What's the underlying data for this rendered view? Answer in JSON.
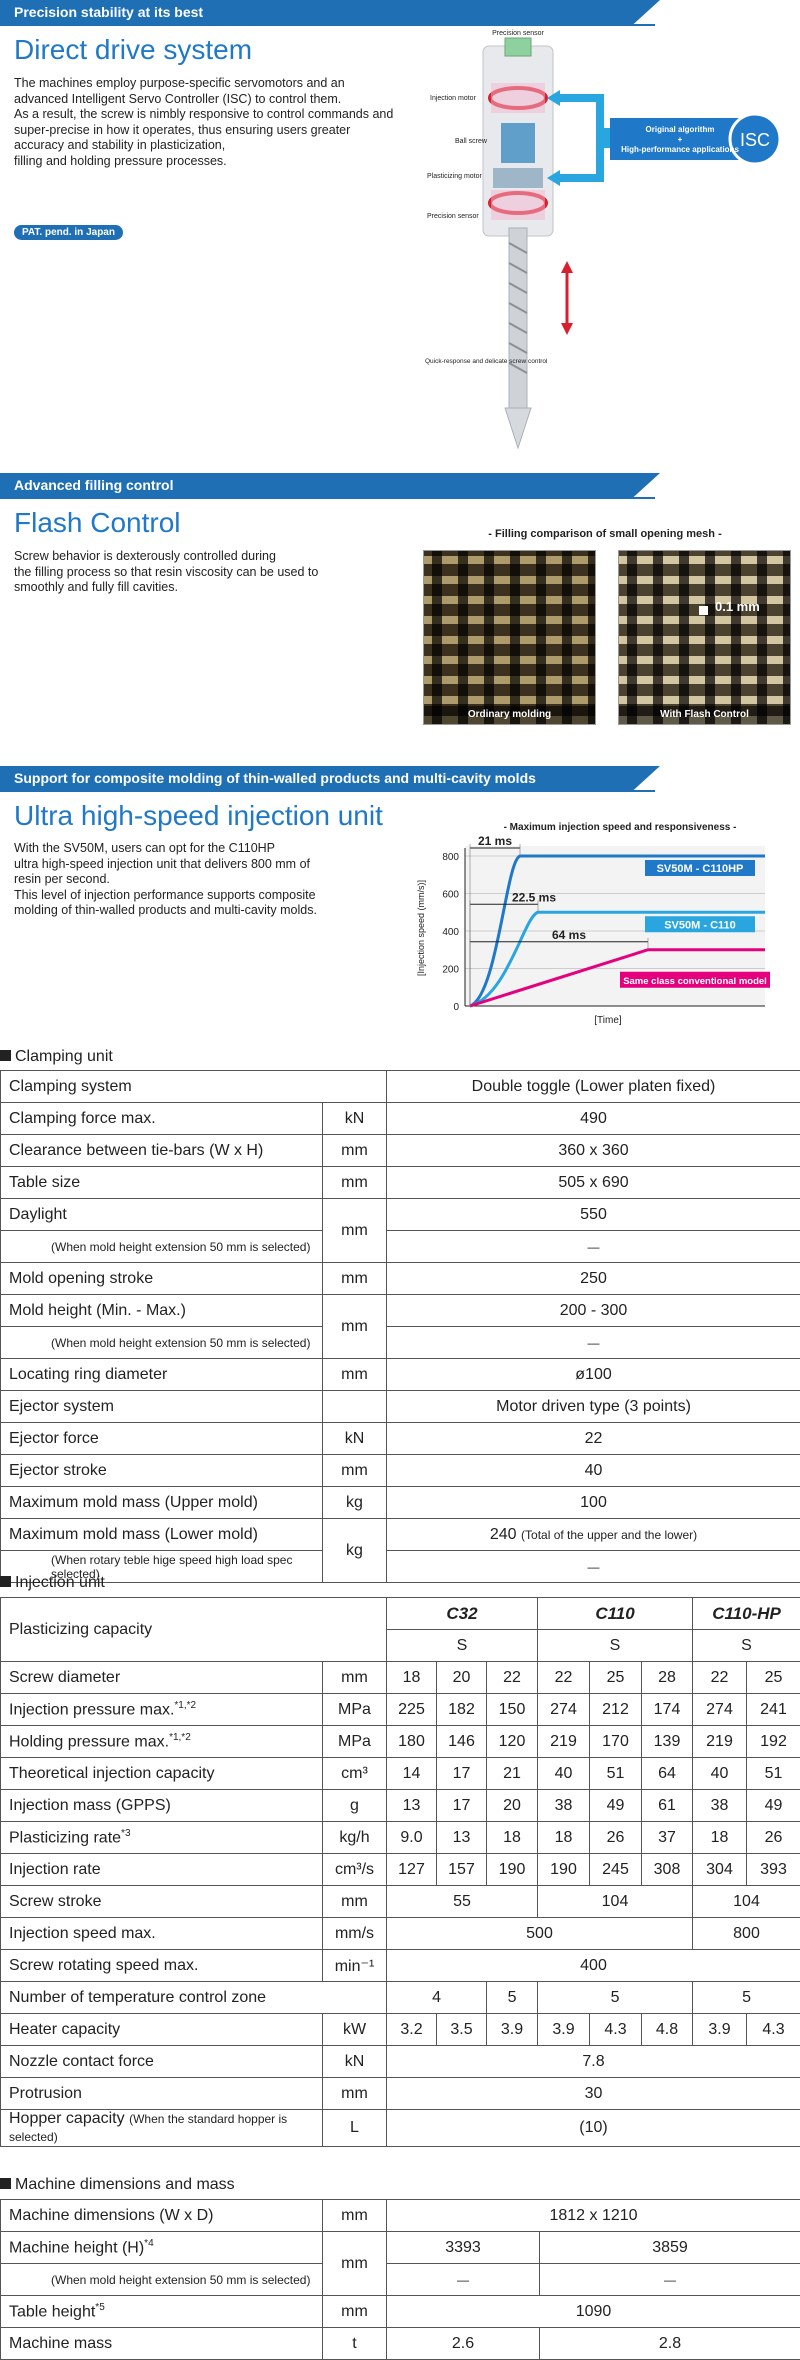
{
  "sections": {
    "direct": {
      "banner": "Precision stability at its best",
      "title": "Direct drive system",
      "paragraph": "The machines employ purpose-specific servomotors and an advanced Intelligent Servo Controller (ISC) to control them.\nAs a result, the screw is nimbly responsive to control commands and super-precise in how it operates, thus ensuring users greater accuracy and stability in plasticization,\nfilling and holding pressure processes.",
      "pat": "PAT. pend. in Japan",
      "diagram": {
        "precision_sensor_top": "Precision sensor",
        "injection_motor": "Injection motor",
        "ball_screw": "Ball screw",
        "plasticizing_motor": "Plasticizing motor",
        "precision_sensor_bottom": "Precision sensor",
        "quick_response": "Quick-response and delicate screw control",
        "algorithm_line1": "Original algorithm",
        "algorithm_plus": "+",
        "algorithm_line2": "High-performance applications",
        "isc": "ISC"
      }
    },
    "flash": {
      "banner": "Advanced filling control",
      "title": "Flash Control",
      "paragraph": "Screw behavior is dexterously controlled during\nthe filling process so that resin viscosity can be used to\nsmoothly and fully fill cavities.",
      "caption": "- Filling comparison of small opening mesh -",
      "photo_left": "Ordinary molding",
      "photo_right": "With Flash Control",
      "dimension": "0.1 mm"
    },
    "ultra": {
      "banner": "Support for composite molding of thin-walled products and multi-cavity molds",
      "title": "Ultra high-speed injection unit",
      "paragraph": "With the SV50M, users can opt for the C110HP\nultra high-speed injection unit that delivers 800 mm of\nresin per second.\nThis level of injection performance supports composite\nmolding of thin-walled products and multi-cavity molds."
    }
  },
  "chart_data": {
    "type": "line",
    "title": "- Maximum injection speed and responsiveness -",
    "ylabel": "[Injection speed (mm/s)]",
    "xlabel": "[Time]",
    "ylim": [
      0,
      800
    ],
    "yticks": [
      "800",
      "600",
      "400",
      "200",
      "0"
    ],
    "series": [
      {
        "name": "SV50M - C110HP",
        "color": "#1f78c8",
        "max": 800,
        "response_label": "21 ms"
      },
      {
        "name": "SV50M - C110",
        "color": "#29a6e0",
        "max": 500,
        "response_label": "22.5 ms"
      },
      {
        "name": "Same class conventional model",
        "color": "#e5007e",
        "max": 300,
        "response_label": "64 ms"
      }
    ]
  },
  "clamping": {
    "title": "Clamping unit",
    "rows": [
      {
        "label": "Clamping system",
        "unit": "",
        "value": "Double toggle (Lower platen fixed)"
      },
      {
        "label": "Clamping force max.",
        "unit": "kN",
        "value": "490"
      },
      {
        "label": "Clearance between tie-bars (W x H)",
        "unit": "mm",
        "value": "360 x 360"
      },
      {
        "label": "Table size",
        "unit": "mm",
        "value": "505 x 690"
      },
      {
        "label": "Daylight",
        "unit": "mm",
        "value": "550",
        "note": "(When mold height extension 50 mm is selected)",
        "note_value": "—"
      },
      {
        "label": "Mold opening stroke",
        "unit": "mm",
        "value": "250"
      },
      {
        "label": "Mold height (Min. - Max.)",
        "unit": "mm",
        "value": "200 - 300",
        "note": "(When mold height extension 50 mm is selected)",
        "note_value": "—"
      },
      {
        "label": "Locating ring diameter",
        "unit": "mm",
        "value": "ø100"
      },
      {
        "label": "Ejector system",
        "unit": "",
        "value": "Motor driven type (3 points)"
      },
      {
        "label": "Ejector force",
        "unit": "kN",
        "value": "22"
      },
      {
        "label": "Ejector stroke",
        "unit": "mm",
        "value": "40"
      },
      {
        "label": "Maximum mold mass (Upper mold)",
        "unit": "kg",
        "value": "100"
      },
      {
        "label": "Maximum mold mass (Lower mold)",
        "unit": "kg",
        "value": "240",
        "value_suffix": "(Total of the upper and the lower)",
        "note": "(When rotary teble hige speed high load spec selected)",
        "note_value": "—"
      }
    ]
  },
  "injection": {
    "title": "Injection unit",
    "capacity_label": "Plasticizing capacity",
    "models": [
      "C32",
      "C110",
      "C110-HP"
    ],
    "screw_type": [
      "S",
      "S",
      "S"
    ],
    "rows": [
      {
        "label": "Screw diameter",
        "unit": "mm",
        "values": [
          "18",
          "20",
          "22",
          "22",
          "25",
          "28",
          "22",
          "25"
        ]
      },
      {
        "label": "Injection pressure max.",
        "sup": "*1,*2",
        "unit": "MPa",
        "values": [
          "225",
          "182",
          "150",
          "274",
          "212",
          "174",
          "274",
          "241"
        ]
      },
      {
        "label": "Holding pressure max.",
        "sup": "*1,*2",
        "unit": "MPa",
        "values": [
          "180",
          "146",
          "120",
          "219",
          "170",
          "139",
          "219",
          "192"
        ]
      },
      {
        "label": "Theoretical injection capacity",
        "unit": "cm³",
        "values": [
          "14",
          "17",
          "21",
          "40",
          "51",
          "64",
          "40",
          "51"
        ]
      },
      {
        "label": "Injection mass (GPPS)",
        "unit": "g",
        "values": [
          "13",
          "17",
          "20",
          "38",
          "49",
          "61",
          "38",
          "49"
        ]
      },
      {
        "label": "Plasticizing rate",
        "sup": "*3",
        "unit": "kg/h",
        "values": [
          "9.0",
          "13",
          "18",
          "18",
          "26",
          "37",
          "18",
          "26"
        ]
      },
      {
        "label": "Injection rate",
        "unit": "cm³/s",
        "values": [
          "127",
          "157",
          "190",
          "190",
          "245",
          "308",
          "304",
          "393"
        ]
      }
    ],
    "screw_stroke": {
      "label": "Screw stroke",
      "unit": "mm",
      "values": [
        "55",
        "104",
        "104"
      ]
    },
    "injection_speed": {
      "label": "Injection speed max.",
      "unit": "mm/s",
      "values": [
        "500",
        "800"
      ]
    },
    "rotating_speed": {
      "label": "Screw rotating speed max.",
      "unit": "min⁻¹",
      "value": "400"
    },
    "temp_zone": {
      "label": "Number of temperature control zone",
      "values": [
        "4",
        "5",
        "5",
        "5"
      ]
    },
    "heater": {
      "label": "Heater capacity",
      "unit": "kW",
      "values": [
        "3.2",
        "3.5",
        "3.9",
        "3.9",
        "4.3",
        "4.8",
        "3.9",
        "4.3"
      ]
    },
    "nozzle": {
      "label": "Nozzle contact force",
      "unit": "kN",
      "value": "7.8"
    },
    "protrusion": {
      "label": "Protrusion",
      "unit": "mm",
      "value": "30"
    },
    "hopper": {
      "label": "Hopper capacity",
      "label_small": "(When the standard hopper is selected)",
      "unit": "L",
      "value": "(10)"
    }
  },
  "dimensions": {
    "title": "Machine dimensions and mass",
    "md": {
      "label": "Machine dimensions (W x D)",
      "unit": "mm",
      "value": "1812 x 1210"
    },
    "mh": {
      "label": "Machine height (H)",
      "sup": "*4",
      "unit": "mm",
      "values": [
        "3393",
        "3859"
      ],
      "note": "(When mold height extension 50 mm is selected)",
      "note_values": [
        "—",
        "—"
      ]
    },
    "th": {
      "label": "Table height",
      "sup": "*5",
      "unit": "mm",
      "value": "1090"
    },
    "mm": {
      "label": "Machine mass",
      "unit": "t",
      "values": [
        "2.6",
        "2.8"
      ]
    }
  }
}
